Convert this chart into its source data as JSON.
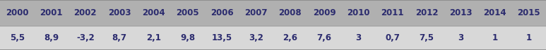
{
  "years": [
    "2000",
    "2001",
    "2002",
    "2003",
    "2004",
    "2005",
    "2006",
    "2007",
    "2008",
    "2009",
    "2010",
    "2011",
    "2012",
    "2013",
    "2014",
    "2015"
  ],
  "values": [
    "5,5",
    "8,9",
    "-3,2",
    "8,7",
    "2,1",
    "9,8",
    "13,5",
    "3,2",
    "2,6",
    "7,6",
    "3",
    "0,7",
    "7,5",
    "3",
    "1",
    "1"
  ],
  "header_bg": "#b0b0b0",
  "value_bg": "#d8d8d8",
  "outer_border_color": "#888888",
  "separator_color": "#999999",
  "text_color": "#2b2b6e",
  "header_fontsize": 8.5,
  "value_fontsize": 8.5,
  "fig_width": 7.73,
  "fig_height": 0.72
}
